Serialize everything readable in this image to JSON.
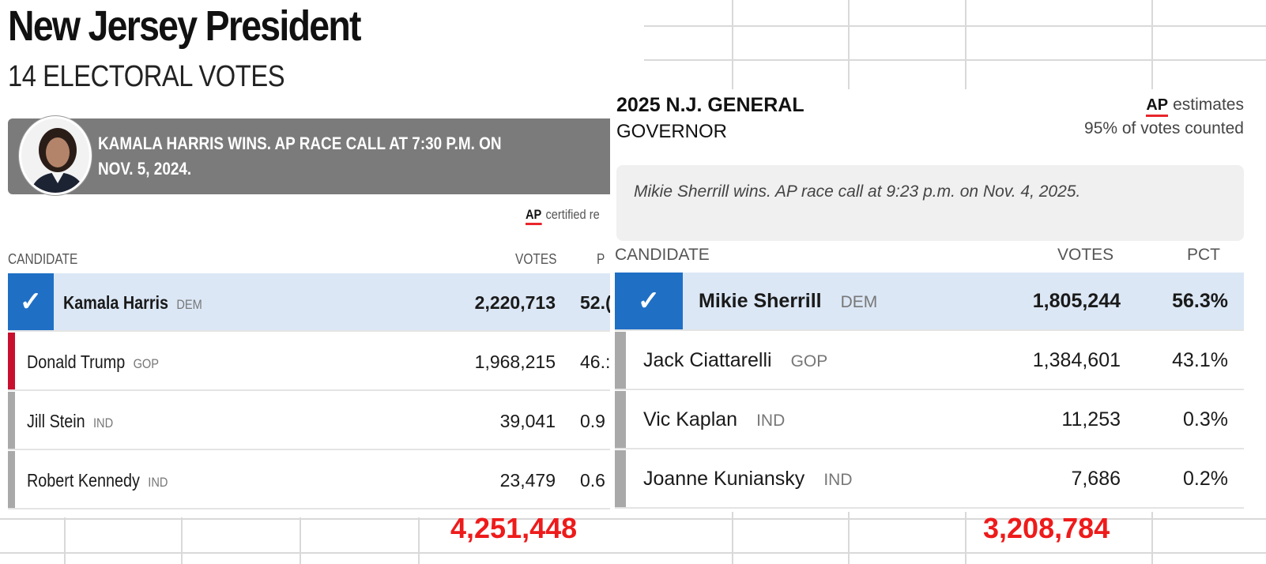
{
  "president": {
    "title": "New Jersey President",
    "subtitle": "14 ELECTORAL VOTES",
    "call_text": "KAMALA HARRIS WINS. AP RACE CALL AT 7:30 P.M. ON NOV. 5, 2024.",
    "ap_logo": "AP",
    "ap_status": "certified re",
    "columns": {
      "candidate": "CANDIDATE",
      "votes": "VOTES",
      "pct": "P"
    },
    "rows": [
      {
        "name": "Kamala Harris",
        "party": "DEM",
        "votes": "2,220,713",
        "pct": "52.(",
        "winner": true,
        "color": "#1f6fc5"
      },
      {
        "name": "Donald Trump",
        "party": "GOP",
        "votes": "1,968,215",
        "pct": "46.:",
        "winner": false,
        "color": "#c8102e"
      },
      {
        "name": "Jill Stein",
        "party": "IND",
        "votes": "39,041",
        "pct": "0.9",
        "winner": false,
        "color": "#a9a9a9"
      },
      {
        "name": "Robert Kennedy",
        "party": "IND",
        "votes": "23,479",
        "pct": "0.6",
        "winner": false,
        "color": "#a9a9a9"
      }
    ],
    "total": "4,251,448"
  },
  "governor": {
    "title": "2025 N.J. GENERAL",
    "subtitle": "GOVERNOR",
    "ap_logo": "AP",
    "ap_status": "estimates",
    "count_text": "95% of votes counted",
    "call_text": "Mikie Sherrill wins. AP race call at 9:23 p.m. on Nov. 4, 2025.",
    "columns": {
      "candidate": "CANDIDATE",
      "votes": "VOTES",
      "pct": "PCT"
    },
    "rows": [
      {
        "name": "Mikie Sherrill",
        "party": "DEM",
        "votes": "1,805,244",
        "pct": "56.3%",
        "winner": true
      },
      {
        "name": "Jack Ciattarelli",
        "party": "GOP",
        "votes": "1,384,601",
        "pct": "43.1%",
        "winner": false
      },
      {
        "name": "Vic Kaplan",
        "party": "IND",
        "votes": "11,253",
        "pct": "0.3%",
        "winner": false
      },
      {
        "name": "Joanne Kuniansky",
        "party": "IND",
        "votes": "7,686",
        "pct": "0.2%",
        "winner": false
      }
    ],
    "total": "3,208,784"
  },
  "checkmark": "✓",
  "colors": {
    "winner_blue": "#1f6fc5",
    "winner_row": "#dbe7f5",
    "gop_red": "#c8102e",
    "ind_gray": "#a9a9a9",
    "total_red": "#ee1b1b",
    "call_banner": "#7b7b7b"
  }
}
